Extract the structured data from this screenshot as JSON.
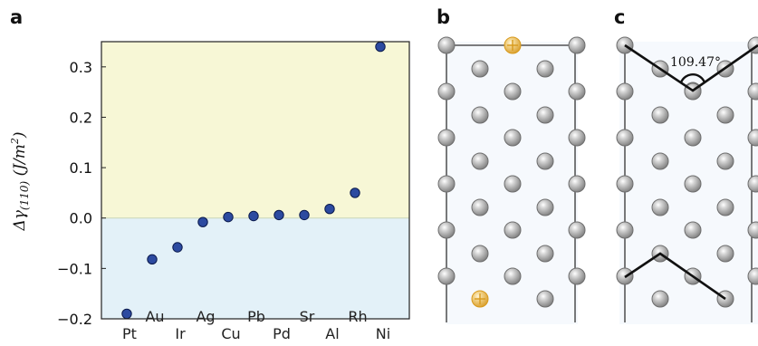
{
  "panels": {
    "a": "a",
    "b": "b",
    "c": "c"
  },
  "colors": {
    "positive_region": "#f7f7d6",
    "negative_region": "#e3f1f8",
    "marker_fill": "#2c4aa0",
    "marker_edge": "#0b1a4c",
    "atom_fill": "#9a9a9a",
    "dopant_fill": "#e9c16a",
    "dopant_edge": "#d89a1c",
    "bond_line": "#111111"
  },
  "chart_data": {
    "type": "scatter",
    "title": "",
    "ylabel": "Δγ(110) (J/m²)",
    "ylabel_parts": {
      "symbol": "Δγ",
      "subscript": "(110)",
      "unit": " (J/m",
      "unit_sup": "2",
      "unit_close": ")"
    },
    "xlabel": "",
    "ylim": [
      -0.2,
      0.35
    ],
    "yticks": [
      0.3,
      0.2,
      0.1,
      0.0,
      -0.1,
      -0.2
    ],
    "ytick_labels": [
      "0.3",
      "0.2",
      "0.1",
      "0.0",
      "−0.1",
      "−0.2"
    ],
    "regions": [
      {
        "from": 0.0,
        "to": 0.35,
        "name": "positive"
      },
      {
        "from": -0.2,
        "to": 0.0,
        "name": "negative"
      }
    ],
    "categories": [
      "Pt",
      "Au",
      "Ir",
      "Ag",
      "Cu",
      "Pb",
      "Pd",
      "Sr",
      "Al",
      "Rh",
      "Ni"
    ],
    "values": [
      -0.19,
      -0.082,
      -0.058,
      -0.008,
      0.002,
      0.004,
      0.006,
      0.006,
      0.018,
      0.05,
      0.34
    ],
    "label_row": [
      "lower",
      "upper",
      "lower",
      "upper",
      "lower",
      "upper",
      "lower",
      "upper",
      "lower",
      "upper",
      "lower"
    ]
  },
  "panel_c": {
    "angle_label": "109.47°"
  }
}
